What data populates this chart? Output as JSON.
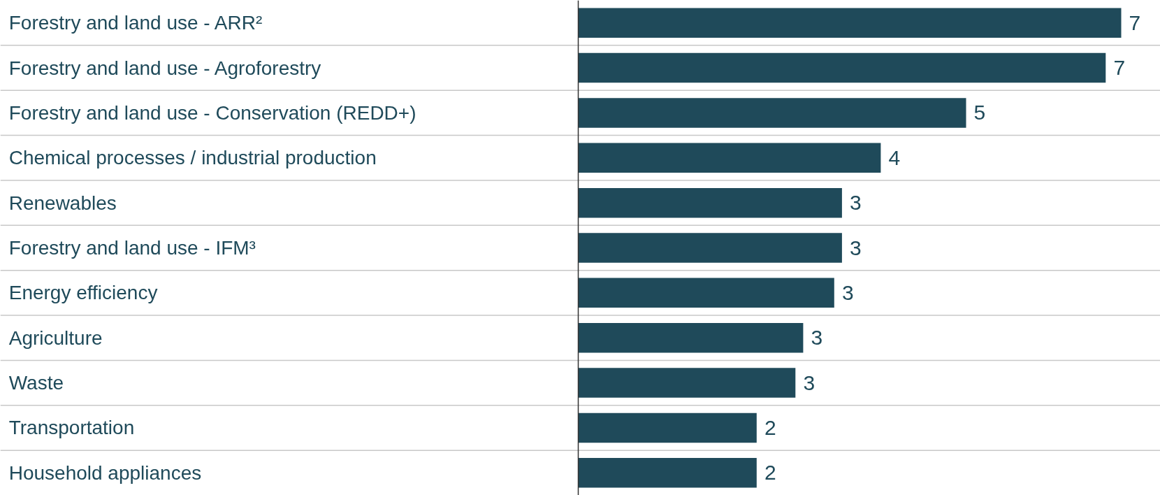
{
  "chart_data": {
    "type": "bar",
    "orientation": "horizontal",
    "categories": [
      "Forestry and land use - ARR²",
      "Forestry and land use - Agroforestry",
      "Forestry and land use - Conservation (REDD+)",
      "Chemical processes / industrial production",
      "Renewables",
      "Forestry and land use - IFM³",
      "Energy efficiency",
      "Agriculture",
      "Waste",
      "Transportation",
      "Household appliances"
    ],
    "values": [
      7.0,
      6.8,
      5.0,
      3.9,
      3.4,
      3.4,
      3.3,
      2.9,
      2.8,
      2.3,
      2.3
    ],
    "value_labels": [
      "7",
      "7",
      "5",
      "4",
      "3",
      "3",
      "3",
      "3",
      "3",
      "2",
      "2"
    ],
    "color": "#1f4a5a",
    "grid": "y"
  }
}
